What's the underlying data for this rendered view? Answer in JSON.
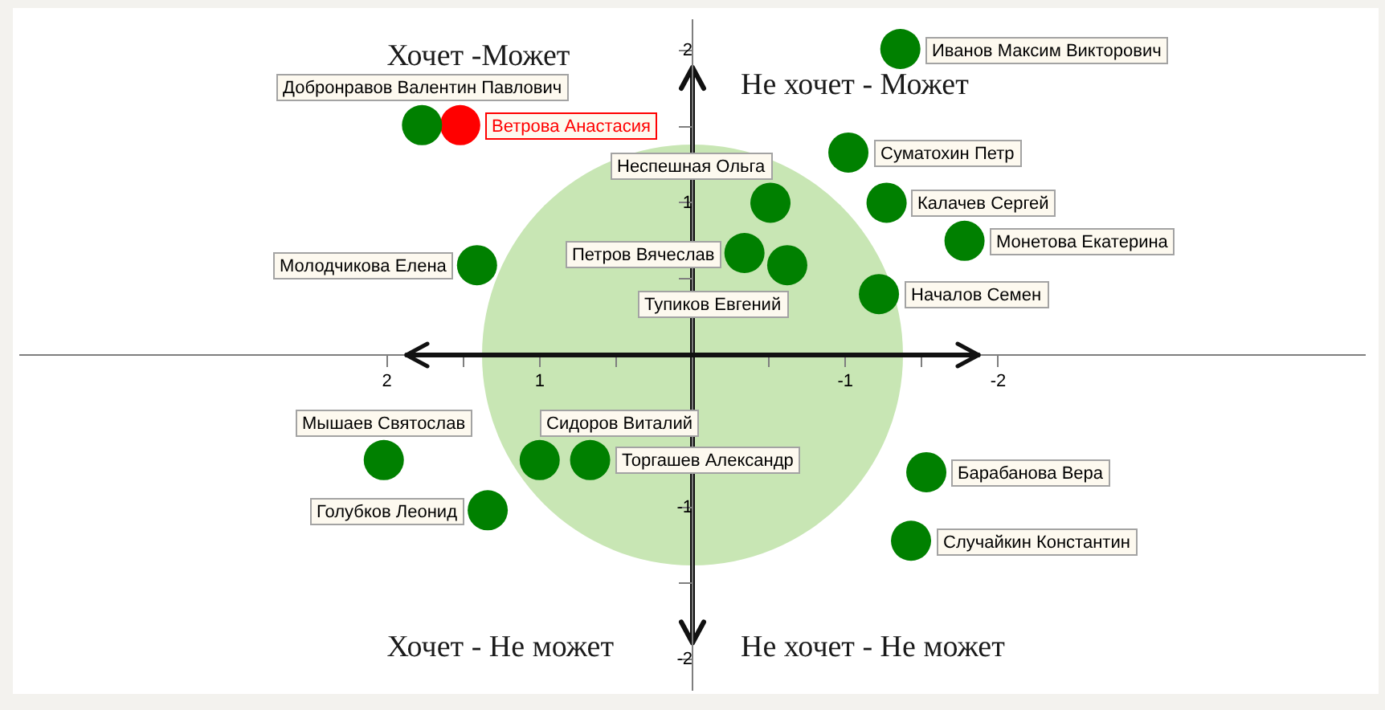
{
  "chart_data": {
    "type": "scatter",
    "marker": "circle",
    "xlim": [
      4.4,
      -4.4
    ],
    "xticks": [
      2,
      {
        "value": 1.5,
        "label": null
      },
      1,
      {
        "value": 0.5,
        "label": null
      },
      {
        "value": -0.5,
        "label": null
      },
      -1,
      {
        "value": -1.5,
        "label": null
      },
      -2
    ],
    "ylim": [
      -2.2,
      2.2
    ],
    "yticks": [
      -2,
      {
        "value": -1.5,
        "label": null
      },
      -1,
      {
        "value": -0.5,
        "label": null
      },
      {
        "value": 0.5,
        "label": null
      },
      1,
      {
        "value": 1.5,
        "label": null
      },
      2
    ],
    "ref_lines": [
      {
        "axis": "y",
        "value": 0,
        "color": "#111111"
      }
    ],
    "annotations": [
      "Хочет -Может",
      "Не хочет - Может",
      "Хочет - Не может",
      "Не хочет - Не может"
    ],
    "series": [
      {
        "name": "Иванов Максим Викторович",
        "color": "#008000",
        "x": [
          -1.36
        ],
        "values": [
          2.01
        ]
      },
      {
        "name": "Добронравов Валентин Павлович",
        "color": "#008000",
        "x": [
          1.77
        ],
        "values": [
          1.51
        ]
      },
      {
        "name": "Ветрова Анастасия",
        "color": "#ff0000",
        "x": [
          1.52
        ],
        "values": [
          1.51
        ]
      },
      {
        "name": "Суматохин Петр",
        "color": "#008000",
        "x": [
          -1.02
        ],
        "values": [
          1.33
        ]
      },
      {
        "name": "Неспешная Ольга",
        "color": "#008000",
        "x": [
          -0.51
        ],
        "values": [
          1.0
        ]
      },
      {
        "name": "Калачев Сергей",
        "color": "#008000",
        "x": [
          -1.27
        ],
        "values": [
          1.0
        ]
      },
      {
        "name": "Монетова Екатерина",
        "color": "#008000",
        "x": [
          -1.78
        ],
        "values": [
          0.75
        ]
      },
      {
        "name": "Петров Вячеслав",
        "color": "#008000",
        "x": [
          -0.34
        ],
        "values": [
          0.67
        ]
      },
      {
        "name": "Тупиков Евгений",
        "color": "#008000",
        "x": [
          -0.62
        ],
        "values": [
          0.59
        ]
      },
      {
        "name": "Началов Семен",
        "color": "#008000",
        "x": [
          -1.22
        ],
        "values": [
          0.4
        ]
      },
      {
        "name": "Молодчикова Елена",
        "color": "#008000",
        "x": [
          1.41
        ],
        "values": [
          0.59
        ]
      },
      {
        "name": "Мышаев Святослав",
        "color": "#008000",
        "x": [
          2.02
        ],
        "values": [
          -0.69
        ]
      },
      {
        "name": "Сидоров Виталий",
        "color": "#008000",
        "x": [
          1.0
        ],
        "values": [
          -0.69
        ]
      },
      {
        "name": "Торгашев Александр",
        "color": "#008000",
        "x": [
          0.67
        ],
        "values": [
          -0.69
        ]
      },
      {
        "name": "Голубков Леонид",
        "color": "#008000",
        "x": [
          1.34
        ],
        "values": [
          -1.02
        ]
      },
      {
        "name": "Барабанова Вера",
        "color": "#008000",
        "x": [
          -1.53
        ],
        "values": [
          -0.77
        ]
      },
      {
        "name": "Случайкин Константин",
        "color": "#008000",
        "x": [
          -1.43
        ],
        "values": [
          -1.22
        ]
      }
    ]
  }
}
